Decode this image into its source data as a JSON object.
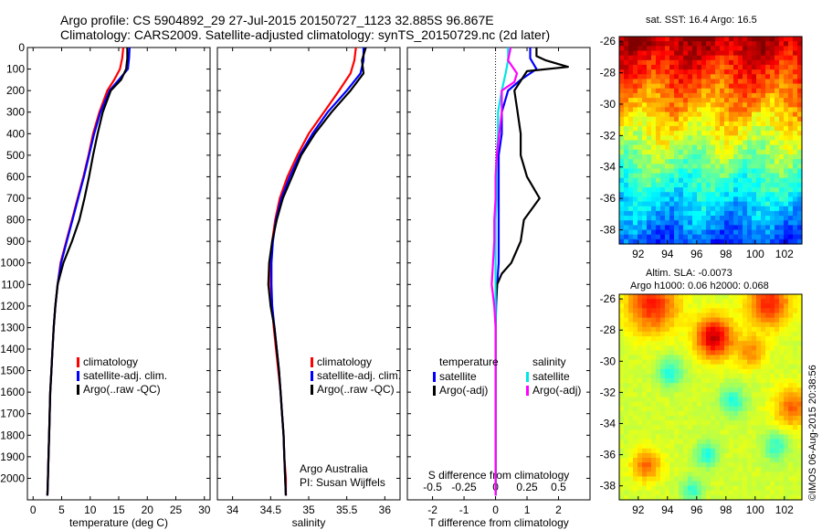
{
  "header": {
    "line1": "Argo profile: CS 5904892_29 27-Jul-2015 20150727_1123 32.885S 96.867E",
    "line2": "Climatology: CARS2009. Satellite-adjusted climatology: synTS_20150729.nc (2d later)"
  },
  "colors": {
    "climatology": "#ff0000",
    "satellite": "#0000ff",
    "argo": "#000000",
    "satellite_salinity": "#00e5e5",
    "argo_salinity": "#ff00ff"
  },
  "legend": {
    "climatology": "climatology",
    "satellite": "satellite-adj. clim.",
    "argo": "Argo(..raw -QC)"
  },
  "legend_diff": {
    "temperature_title": "temperature",
    "salinity_title": "salinity",
    "satellite": "satellite",
    "argo": "Argo(-adj)"
  },
  "notes": {
    "org": "Argo Australia",
    "pi": "PI: Susan Wijffels",
    "sst": "sat. SST: 16.4 Argo: 16.5",
    "sla": "Altim. SLA: -0.0073",
    "h": "Argo h1000: 0.06 h2000: 0.068",
    "stamp": "©IMOS 06-Aug-2015 20:38:56"
  },
  "chart_data": [
    {
      "type": "line",
      "xlabel": "temperature (deg C)",
      "ylabel": "",
      "xlim": [
        -1,
        31
      ],
      "ylim": [
        2100,
        0
      ],
      "xticks": [
        0,
        5,
        10,
        15,
        20,
        25,
        30
      ],
      "yticks": [
        0,
        100,
        200,
        300,
        400,
        500,
        600,
        700,
        800,
        900,
        1000,
        1100,
        1200,
        1300,
        1400,
        1500,
        1600,
        1700,
        1800,
        1900,
        2000
      ],
      "series": [
        {
          "name": "climatology",
          "color": "#ff0000",
          "points": [
            [
              15.8,
              0
            ],
            [
              15.6,
              50
            ],
            [
              15.2,
              100
            ],
            [
              14.2,
              150
            ],
            [
              13.0,
              200
            ],
            [
              11.6,
              300
            ],
            [
              10.5,
              400
            ],
            [
              9.7,
              500
            ],
            [
              8.8,
              600
            ],
            [
              7.8,
              700
            ],
            [
              6.8,
              800
            ],
            [
              5.8,
              900
            ],
            [
              4.8,
              1000
            ],
            [
              4.3,
              1100
            ],
            [
              3.9,
              1200
            ],
            [
              3.6,
              1300
            ],
            [
              3.4,
              1400
            ],
            [
              3.2,
              1500
            ],
            [
              3.0,
              1600
            ],
            [
              2.9,
              1700
            ],
            [
              2.8,
              1800
            ],
            [
              2.7,
              1900
            ],
            [
              2.6,
              2000
            ],
            [
              2.5,
              2080
            ]
          ]
        },
        {
          "name": "satellite-adj. clim.",
          "color": "#0000ff",
          "points": [
            [
              16.9,
              0
            ],
            [
              16.8,
              50
            ],
            [
              16.6,
              100
            ],
            [
              15.0,
              150
            ],
            [
              13.4,
              200
            ],
            [
              11.8,
              300
            ],
            [
              10.7,
              400
            ],
            [
              9.8,
              500
            ],
            [
              8.9,
              600
            ],
            [
              7.9,
              700
            ],
            [
              6.9,
              800
            ],
            [
              5.9,
              900
            ],
            [
              4.9,
              1000
            ],
            [
              4.3,
              1100
            ],
            [
              3.9,
              1200
            ],
            [
              3.6,
              1300
            ],
            [
              3.4,
              1400
            ],
            [
              3.2,
              1500
            ],
            [
              3.0,
              1600
            ],
            [
              2.9,
              1700
            ],
            [
              2.8,
              1800
            ],
            [
              2.7,
              1900
            ],
            [
              2.6,
              2000
            ],
            [
              2.5,
              2080
            ]
          ]
        },
        {
          "name": "Argo(..raw -QC)",
          "color": "#000000",
          "points": [
            [
              16.5,
              0
            ],
            [
              16.5,
              50
            ],
            [
              16.3,
              100
            ],
            [
              15.4,
              150
            ],
            [
              13.6,
              200
            ],
            [
              12.2,
              300
            ],
            [
              11.3,
              400
            ],
            [
              10.5,
              500
            ],
            [
              9.8,
              600
            ],
            [
              9.0,
              700
            ],
            [
              8.1,
              800
            ],
            [
              6.8,
              900
            ],
            [
              5.3,
              1000
            ],
            [
              4.3,
              1100
            ],
            [
              3.9,
              1200
            ],
            [
              3.6,
              1300
            ],
            [
              3.4,
              1400
            ],
            [
              3.2,
              1500
            ],
            [
              3.0,
              1600
            ],
            [
              2.9,
              1700
            ],
            [
              2.8,
              1800
            ],
            [
              2.7,
              1900
            ],
            [
              2.6,
              2000
            ],
            [
              2.5,
              2080
            ]
          ]
        }
      ]
    },
    {
      "type": "line",
      "xlabel": "salinity",
      "ylabel": "",
      "xlim": [
        33.8,
        36.2
      ],
      "ylim": [
        2100,
        0
      ],
      "xticks": [
        34,
        34.5,
        35,
        35.5,
        36
      ],
      "series": [
        {
          "name": "climatology",
          "color": "#ff0000",
          "points": [
            [
              35.62,
              0
            ],
            [
              35.6,
              60
            ],
            [
              35.55,
              120
            ],
            [
              35.4,
              200
            ],
            [
              35.2,
              300
            ],
            [
              35.0,
              400
            ],
            [
              34.85,
              500
            ],
            [
              34.72,
              600
            ],
            [
              34.62,
              700
            ],
            [
              34.56,
              800
            ],
            [
              34.52,
              900
            ],
            [
              34.5,
              1000
            ],
            [
              34.5,
              1100
            ],
            [
              34.52,
              1200
            ],
            [
              34.54,
              1300
            ],
            [
              34.57,
              1400
            ],
            [
              34.6,
              1500
            ],
            [
              34.63,
              1600
            ],
            [
              34.65,
              1700
            ],
            [
              34.67,
              1800
            ],
            [
              34.68,
              1900
            ],
            [
              34.7,
              2000
            ],
            [
              34.7,
              2080
            ]
          ]
        },
        {
          "name": "satellite-adj. clim.",
          "color": "#0000ff",
          "points": [
            [
              35.72,
              0
            ],
            [
              35.72,
              60
            ],
            [
              35.68,
              120
            ],
            [
              35.5,
              200
            ],
            [
              35.25,
              300
            ],
            [
              35.05,
              400
            ],
            [
              34.88,
              500
            ],
            [
              34.75,
              600
            ],
            [
              34.64,
              700
            ],
            [
              34.57,
              800
            ],
            [
              34.53,
              900
            ],
            [
              34.51,
              1000
            ],
            [
              34.51,
              1100
            ],
            [
              34.52,
              1200
            ],
            [
              34.55,
              1300
            ],
            [
              34.58,
              1400
            ],
            [
              34.61,
              1500
            ],
            [
              34.63,
              1600
            ],
            [
              34.65,
              1700
            ],
            [
              34.67,
              1800
            ],
            [
              34.68,
              1900
            ],
            [
              34.69,
              2000
            ],
            [
              34.7,
              2080
            ]
          ]
        },
        {
          "name": "Argo(..raw -QC)",
          "color": "#000000",
          "points": [
            [
              35.75,
              0
            ],
            [
              35.7,
              60
            ],
            [
              35.72,
              120
            ],
            [
              35.55,
              200
            ],
            [
              35.3,
              300
            ],
            [
              35.08,
              400
            ],
            [
              34.9,
              500
            ],
            [
              34.78,
              600
            ],
            [
              34.66,
              700
            ],
            [
              34.58,
              800
            ],
            [
              34.52,
              900
            ],
            [
              34.48,
              1000
            ],
            [
              34.47,
              1100
            ],
            [
              34.5,
              1200
            ],
            [
              34.55,
              1300
            ],
            [
              34.58,
              1400
            ],
            [
              34.61,
              1500
            ],
            [
              34.63,
              1600
            ],
            [
              34.65,
              1700
            ],
            [
              34.67,
              1800
            ],
            [
              34.68,
              1900
            ],
            [
              34.69,
              2000
            ],
            [
              34.7,
              2080
            ]
          ]
        }
      ]
    },
    {
      "type": "line",
      "xlabel": "T difference from climatology",
      "top_label": "S difference from climatology",
      "xlim": [
        -2.8,
        3.0
      ],
      "ylim": [
        2100,
        0
      ],
      "xticks": [
        -2,
        -1,
        0,
        1,
        2
      ],
      "s_ticks": [
        -0.5,
        -0.25,
        0,
        0.25,
        0.5
      ],
      "s_tick_labels": [
        "-0.5",
        "-0.25",
        "0",
        "0.25",
        "0.5"
      ],
      "series": [
        {
          "name": "satellite",
          "var": "temperature",
          "color": "#0000ff",
          "points": [
            [
              1.1,
              0
            ],
            [
              1.1,
              50
            ],
            [
              1.3,
              100
            ],
            [
              0.8,
              150
            ],
            [
              0.4,
              200
            ],
            [
              0.2,
              300
            ],
            [
              0.2,
              400
            ],
            [
              0.1,
              500
            ],
            [
              0.1,
              600
            ],
            [
              0.1,
              700
            ],
            [
              0.1,
              800
            ],
            [
              0.1,
              900
            ],
            [
              0.1,
              1000
            ],
            [
              0.05,
              1100
            ],
            [
              0.02,
              1200
            ],
            [
              0.0,
              1300
            ],
            [
              0.0,
              1500
            ],
            [
              0.0,
              1800
            ],
            [
              0.0,
              2080
            ]
          ]
        },
        {
          "name": "Argo(-adj)",
          "var": "temperature",
          "color": "#000000",
          "points": [
            [
              1.3,
              0
            ],
            [
              1.3,
              40
            ],
            [
              1.6,
              60
            ],
            [
              2.3,
              90
            ],
            [
              1.0,
              110
            ],
            [
              0.6,
              200
            ],
            [
              0.7,
              300
            ],
            [
              0.8,
              400
            ],
            [
              0.8,
              500
            ],
            [
              1.0,
              600
            ],
            [
              1.4,
              700
            ],
            [
              0.9,
              800
            ],
            [
              0.8,
              900
            ],
            [
              0.5,
              1000
            ],
            [
              0.2,
              1050
            ],
            [
              0.05,
              1100
            ],
            [
              0.0,
              1200
            ],
            [
              0.0,
              1500
            ],
            [
              0.0,
              2080
            ]
          ]
        },
        {
          "name": "satellite",
          "var": "salinity",
          "color": "#00e5e5",
          "points": [
            [
              0.1,
              0
            ],
            [
              0.1,
              60
            ],
            [
              0.08,
              120
            ],
            [
              0.05,
              200
            ],
            [
              0.02,
              300
            ],
            [
              0.02,
              400
            ],
            [
              0.01,
              500
            ],
            [
              0.01,
              600
            ],
            [
              0.01,
              700
            ],
            [
              0.0,
              800
            ],
            [
              0.0,
              1000
            ],
            [
              0.0,
              1500
            ],
            [
              0.0,
              2080
            ]
          ]
        },
        {
          "name": "Argo(-adj)",
          "var": "salinity",
          "color": "#ff00ff",
          "points": [
            [
              0.12,
              0
            ],
            [
              0.1,
              60
            ],
            [
              0.17,
              120
            ],
            [
              0.15,
              160
            ],
            [
              0.05,
              200
            ],
            [
              0.05,
              300
            ],
            [
              0.03,
              400
            ],
            [
              0.01,
              500
            ],
            [
              0.0,
              600
            ],
            [
              0.0,
              700
            ],
            [
              -0.01,
              800
            ],
            [
              -0.01,
              900
            ],
            [
              -0.02,
              1000
            ],
            [
              -0.03,
              1100
            ],
            [
              -0.01,
              1200
            ],
            [
              0.0,
              1300
            ],
            [
              0.0,
              1500
            ],
            [
              0.0,
              2080
            ]
          ]
        }
      ]
    },
    {
      "type": "heatmap",
      "title": "sat. SST: 16.4 Argo: 16.5",
      "xlim": [
        90.7,
        103.2
      ],
      "ylim": [
        -38.9,
        -25.7
      ],
      "xticks": [
        92,
        94,
        96,
        98,
        100,
        102
      ],
      "yticks": [
        -26,
        -28,
        -30,
        -32,
        -34,
        -36,
        -38
      ]
    },
    {
      "type": "heatmap",
      "title": "Argo h1000: 0.06 h2000: 0.068",
      "xlim": [
        90.7,
        103.2
      ],
      "ylim": [
        -38.9,
        -25.7
      ],
      "xticks": [
        92,
        94,
        96,
        98,
        100,
        102
      ],
      "yticks": [
        -26,
        -28,
        -30,
        -32,
        -34,
        -36,
        -38
      ]
    }
  ]
}
